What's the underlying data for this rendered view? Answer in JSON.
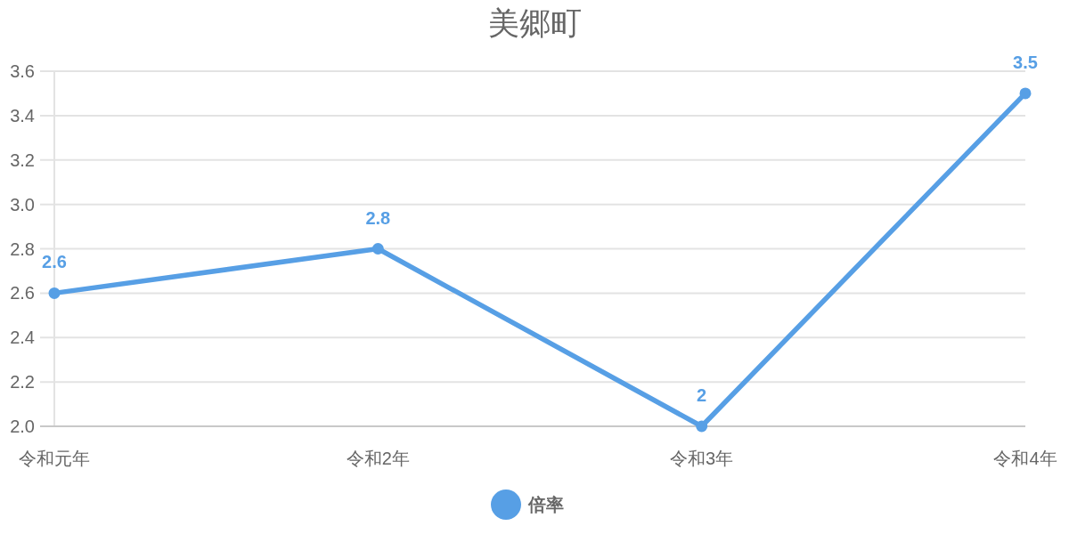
{
  "chart_data": {
    "type": "line",
    "title": "美郷町",
    "categories": [
      "令和元年",
      "令和2年",
      "令和3年",
      "令和4年"
    ],
    "series": [
      {
        "name": "倍率",
        "color": "#579fe5",
        "values": [
          2.6,
          2.8,
          2,
          3.5
        ]
      }
    ],
    "ylim": [
      2.0,
      3.6
    ],
    "yticks": [
      {
        "value": 2.0,
        "label": "2.0"
      },
      2.2,
      2.4,
      2.6,
      2.8,
      {
        "value": 3.0,
        "label": "3.0"
      },
      3.2,
      3.4,
      3.6
    ],
    "grid": "y",
    "legend": "bottom",
    "marker": "circle",
    "line_style": "solid",
    "data_labels": true
  }
}
